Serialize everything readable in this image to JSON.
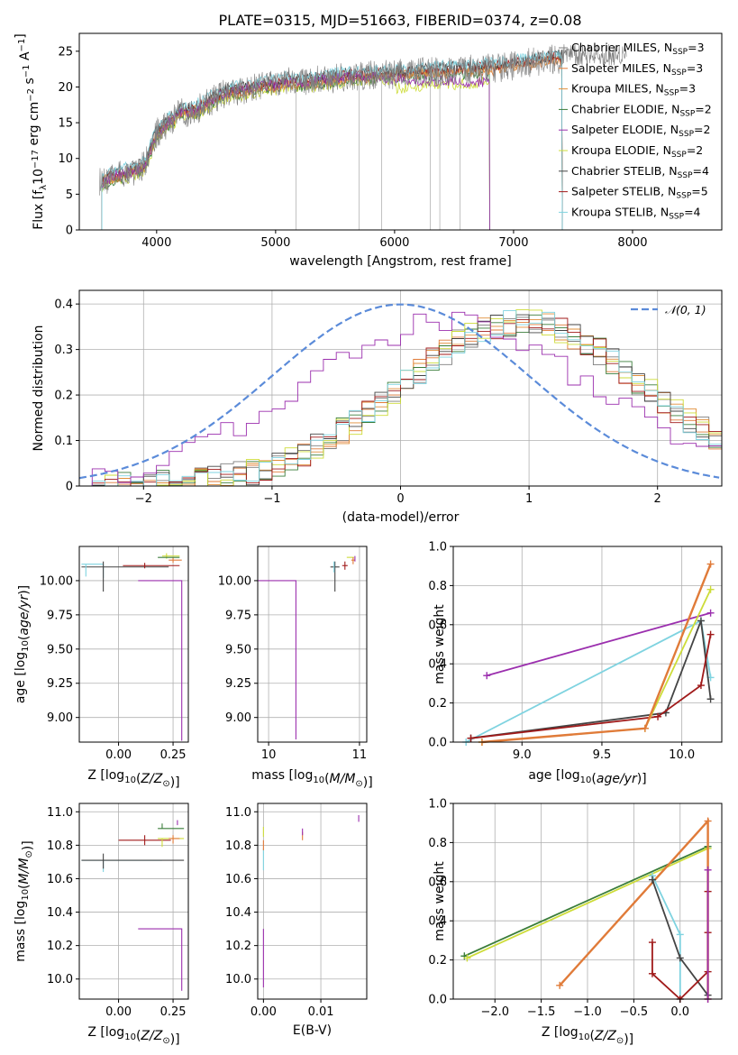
{
  "page": {
    "title": "PLATE=0315, MJD=51663, FIBERID=0374, z=0.08"
  },
  "colors": {
    "Chabrier MILES": "#7f7f7f",
    "Salpeter MILES": "#e07b39",
    "Kroupa MILES": "#e08f3a",
    "Chabrier ELODIE": "#3a7d3a",
    "Salpeter ELODIE": "#9b2fae",
    "Kroupa ELODIE": "#cddc39",
    "Chabrier STELIB": "#444444",
    "Salpeter STELIB": "#a01a1a",
    "Kroupa STELIB": "#7fd3e0",
    "normal": "#5b8bd9"
  },
  "chart_data": [
    {
      "id": "spectrum",
      "type": "line",
      "title": "PLATE=0315, MJD=51663, FIBERID=0374, z=0.08",
      "xlabel": "wavelength [Angstrom, rest frame]",
      "ylabel": "Flux [f",
      "ylabel_parts": [
        "Flux [f",
        "λ",
        "10",
        "−17",
        " erg cm",
        "−2",
        " s",
        "−1",
        " A",
        "−1",
        "]"
      ],
      "xlim": [
        3350,
        8750
      ],
      "ylim": [
        0,
        27.5
      ],
      "xticks": [
        4000,
        5000,
        6000,
        7000,
        8000
      ],
      "yticks": [
        0,
        5,
        10,
        15,
        20,
        25
      ],
      "grid": false,
      "legend_position": "top-right",
      "legend": [
        {
          "name": "Chabrier MILES",
          "sub": "SSP",
          "n": "3"
        },
        {
          "name": "Salpeter MILES",
          "sub": "SSP",
          "n": "3"
        },
        {
          "name": "Kroupa MILES",
          "sub": "SSP",
          "n": "3"
        },
        {
          "name": "Chabrier ELODIE",
          "sub": "SSP",
          "n": "2"
        },
        {
          "name": "Salpeter ELODIE",
          "sub": "SSP",
          "n": "2"
        },
        {
          "name": "Kroupa ELODIE",
          "sub": "SSP",
          "n": "2"
        },
        {
          "name": "Chabrier STELIB",
          "sub": "SSP",
          "n": "4"
        },
        {
          "name": "Salpeter STELIB",
          "sub": "SSP",
          "n": "5"
        },
        {
          "name": "Kroupa STELIB",
          "sub": "SSP",
          "n": "4"
        }
      ],
      "trend": {
        "x": [
          3500,
          3600,
          3700,
          3800,
          3900,
          4000,
          4100,
          4200,
          4300,
          4400,
          4500,
          4600,
          4700,
          4800,
          4900,
          5000,
          5100,
          5200,
          5400,
          5600,
          5800,
          6000,
          6200,
          6400,
          6600,
          6800,
          7000,
          7200,
          7400
        ],
        "y": [
          6.5,
          7.2,
          7.8,
          8.2,
          9.0,
          13.5,
          15.0,
          16.5,
          16.5,
          17.5,
          18.5,
          19.2,
          19.5,
          19.8,
          20.3,
          20.2,
          20.8,
          20.5,
          21.0,
          21.4,
          21.6,
          21.8,
          22.0,
          22.2,
          22.4,
          22.6,
          23.0,
          23.6,
          24.0
        ]
      }
    },
    {
      "id": "residuals",
      "type": "line",
      "xlabel": "(data-model)/error",
      "ylabel": "Normed distribution",
      "xlim": [
        -2.5,
        2.5
      ],
      "ylim": [
        0,
        0.43
      ],
      "xticks": [
        -2,
        -1,
        0,
        1,
        2
      ],
      "yticks": [
        0.0,
        0.1,
        0.2,
        0.3,
        0.4
      ],
      "grid": true,
      "legend_position": "top-right",
      "legend": [
        {
          "name": "𝒩(0, 1)"
        }
      ],
      "bin_width": 0.1
    },
    {
      "id": "age_vs_Z",
      "type": "scatter",
      "xlabel": "Z [log",
      "xlabel_parts": [
        "Z [log",
        "10",
        "(",
        "Z/Z",
        "⊙",
        ")]"
      ],
      "ylabel_parts": [
        "age  [log",
        "10",
        "(",
        "age/yr",
        ")]"
      ],
      "xlim": [
        -0.18,
        0.32
      ],
      "ylim": [
        8.82,
        10.25
      ],
      "xticks": [
        0.0,
        0.25
      ],
      "xticklabels": [
        "0.00",
        "0.25"
      ],
      "yticks": [
        9.0,
        9.25,
        9.5,
        9.75,
        10.0
      ],
      "yticklabels": [
        "9.00",
        "9.25",
        "9.50",
        "9.75",
        "10.00"
      ],
      "grid": true
    },
    {
      "id": "age_vs_mass",
      "type": "scatter",
      "xlabel_parts": [
        "mass [log",
        "10",
        "(",
        "M/M",
        "⊙",
        ")]"
      ],
      "xlim": [
        9.88,
        11.08
      ],
      "ylim": [
        8.82,
        10.25
      ],
      "xticks": [
        10,
        11
      ],
      "xticklabels": [
        "10",
        "11"
      ],
      "yticks": [
        9.0,
        9.25,
        9.5,
        9.75,
        10.0
      ],
      "yticklabels": [
        "9.00",
        "9.25",
        "9.50",
        "9.75",
        "10.00"
      ],
      "grid": true
    },
    {
      "id": "weight_vs_age",
      "type": "line",
      "xlabel_parts": [
        "age  [log",
        "10",
        "(",
        "age/yr",
        ")]"
      ],
      "ylabel": "mass weight",
      "xlim": [
        8.57,
        10.25
      ],
      "ylim": [
        0,
        1.0
      ],
      "xticks": [
        9.0,
        9.5,
        10.0
      ],
      "xticklabels": [
        "9.0",
        "9.5",
        "10.0"
      ],
      "yticks": [
        0.0,
        0.2,
        0.4,
        0.6,
        0.8,
        1.0
      ],
      "yticklabels": [
        "0.0",
        "0.2",
        "0.4",
        "0.6",
        "0.8",
        "1.0"
      ],
      "grid": true,
      "series": [
        {
          "key": "Kroupa STELIB",
          "x": [
            8.65,
            10.12,
            10.18
          ],
          "y": [
            0.0,
            0.62,
            0.33
          ]
        },
        {
          "key": "Salpeter ELODIE",
          "x": [
            8.78,
            10.18
          ],
          "y": [
            0.34,
            0.66
          ]
        },
        {
          "key": "Chabrier STELIB",
          "x": [
            8.68,
            9.9,
            10.12,
            10.18
          ],
          "y": [
            0.02,
            0.15,
            0.62,
            0.22
          ]
        },
        {
          "key": "Salpeter STELIB",
          "x": [
            8.68,
            9.85,
            10.12,
            10.18
          ],
          "y": [
            0.02,
            0.13,
            0.29,
            0.55
          ]
        },
        {
          "key": "Kroupa ELODIE",
          "x": [
            8.75,
            9.77,
            10.18
          ],
          "y": [
            0.0,
            0.07,
            0.78
          ]
        },
        {
          "key": "Salpeter MILES",
          "x": [
            8.75,
            9.77,
            10.18
          ],
          "y": [
            0.0,
            0.07,
            0.91
          ]
        }
      ]
    },
    {
      "id": "mass_vs_Z",
      "type": "scatter",
      "xlabel_parts": [
        "Z [log",
        "10",
        "(",
        "Z/Z",
        "⊙",
        ")]"
      ],
      "ylabel_parts": [
        "mass [log",
        "10",
        "(",
        "M/M",
        "⊙",
        ")]"
      ],
      "xlim": [
        -0.18,
        0.32
      ],
      "ylim": [
        9.88,
        11.05
      ],
      "xticks": [
        0.0,
        0.25
      ],
      "xticklabels": [
        "0.00",
        "0.25"
      ],
      "yticks": [
        10.0,
        10.2,
        10.4,
        10.6,
        10.8,
        11.0
      ],
      "yticklabels": [
        "10.0",
        "10.2",
        "10.4",
        "10.6",
        "10.8",
        "11.0"
      ],
      "grid": true
    },
    {
      "id": "mass_vs_ebv",
      "type": "scatter",
      "xlabel": "E(B-V)",
      "xlim": [
        -0.001,
        0.018
      ],
      "ylim": [
        9.88,
        11.05
      ],
      "xticks": [
        0.0,
        0.01
      ],
      "xticklabels": [
        "0.00",
        "0.01"
      ],
      "yticks": [
        10.0,
        10.2,
        10.4,
        10.6,
        10.8,
        11.0
      ],
      "yticklabels": [
        "10.0",
        "10.2",
        "10.4",
        "10.6",
        "10.8",
        "11.0"
      ],
      "grid": true
    },
    {
      "id": "weight_vs_Z",
      "type": "line",
      "xlabel_parts": [
        "Z [log",
        "10",
        "(",
        "Z/Z",
        "⊙",
        ")]"
      ],
      "ylabel": "mass weight",
      "xlim": [
        -2.45,
        0.45
      ],
      "ylim": [
        0,
        1.0
      ],
      "xticks": [
        -2.0,
        -1.5,
        -1.0,
        -0.5,
        0.0
      ],
      "xticklabels": [
        "−2.0",
        "−1.5",
        "−1.0",
        "−0.5",
        "0.0"
      ],
      "yticks": [
        0.0,
        0.2,
        0.4,
        0.6,
        0.8,
        1.0
      ],
      "yticklabels": [
        "0.0",
        "0.2",
        "0.4",
        "0.6",
        "0.8",
        "1.0"
      ],
      "grid": true,
      "series": [
        {
          "key": "Chabrier ELODIE",
          "x": [
            -2.33,
            0.3
          ],
          "y": [
            0.22,
            0.78
          ]
        },
        {
          "key": "Kroupa ELODIE",
          "x": [
            -2.3,
            0.3
          ],
          "y": [
            0.21,
            0.77
          ]
        },
        {
          "key": "Salpeter MILES",
          "x": [
            -1.3,
            0.3,
            0.3
          ],
          "y": [
            0.07,
            0.91,
            0.0
          ]
        },
        {
          "key": "Kroupa STELIB",
          "x": [
            -0.3,
            0.0,
            0.0
          ],
          "y": [
            0.63,
            0.33,
            0.0
          ]
        },
        {
          "key": "Chabrier STELIB",
          "x": [
            -0.3,
            0.0,
            0.3
          ],
          "y": [
            0.61,
            0.21,
            0.02
          ]
        },
        {
          "key": "Salpeter STELIB",
          "x": [
            -0.3,
            -0.3,
            0.0,
            0.3,
            0.3,
            0.3
          ],
          "y": [
            0.29,
            0.13,
            0.0,
            0.14,
            0.34,
            0.55
          ]
        },
        {
          "key": "Salpeter ELODIE",
          "x": [
            0.3,
            0.3
          ],
          "y": [
            0.0,
            0.66
          ]
        }
      ]
    }
  ]
}
